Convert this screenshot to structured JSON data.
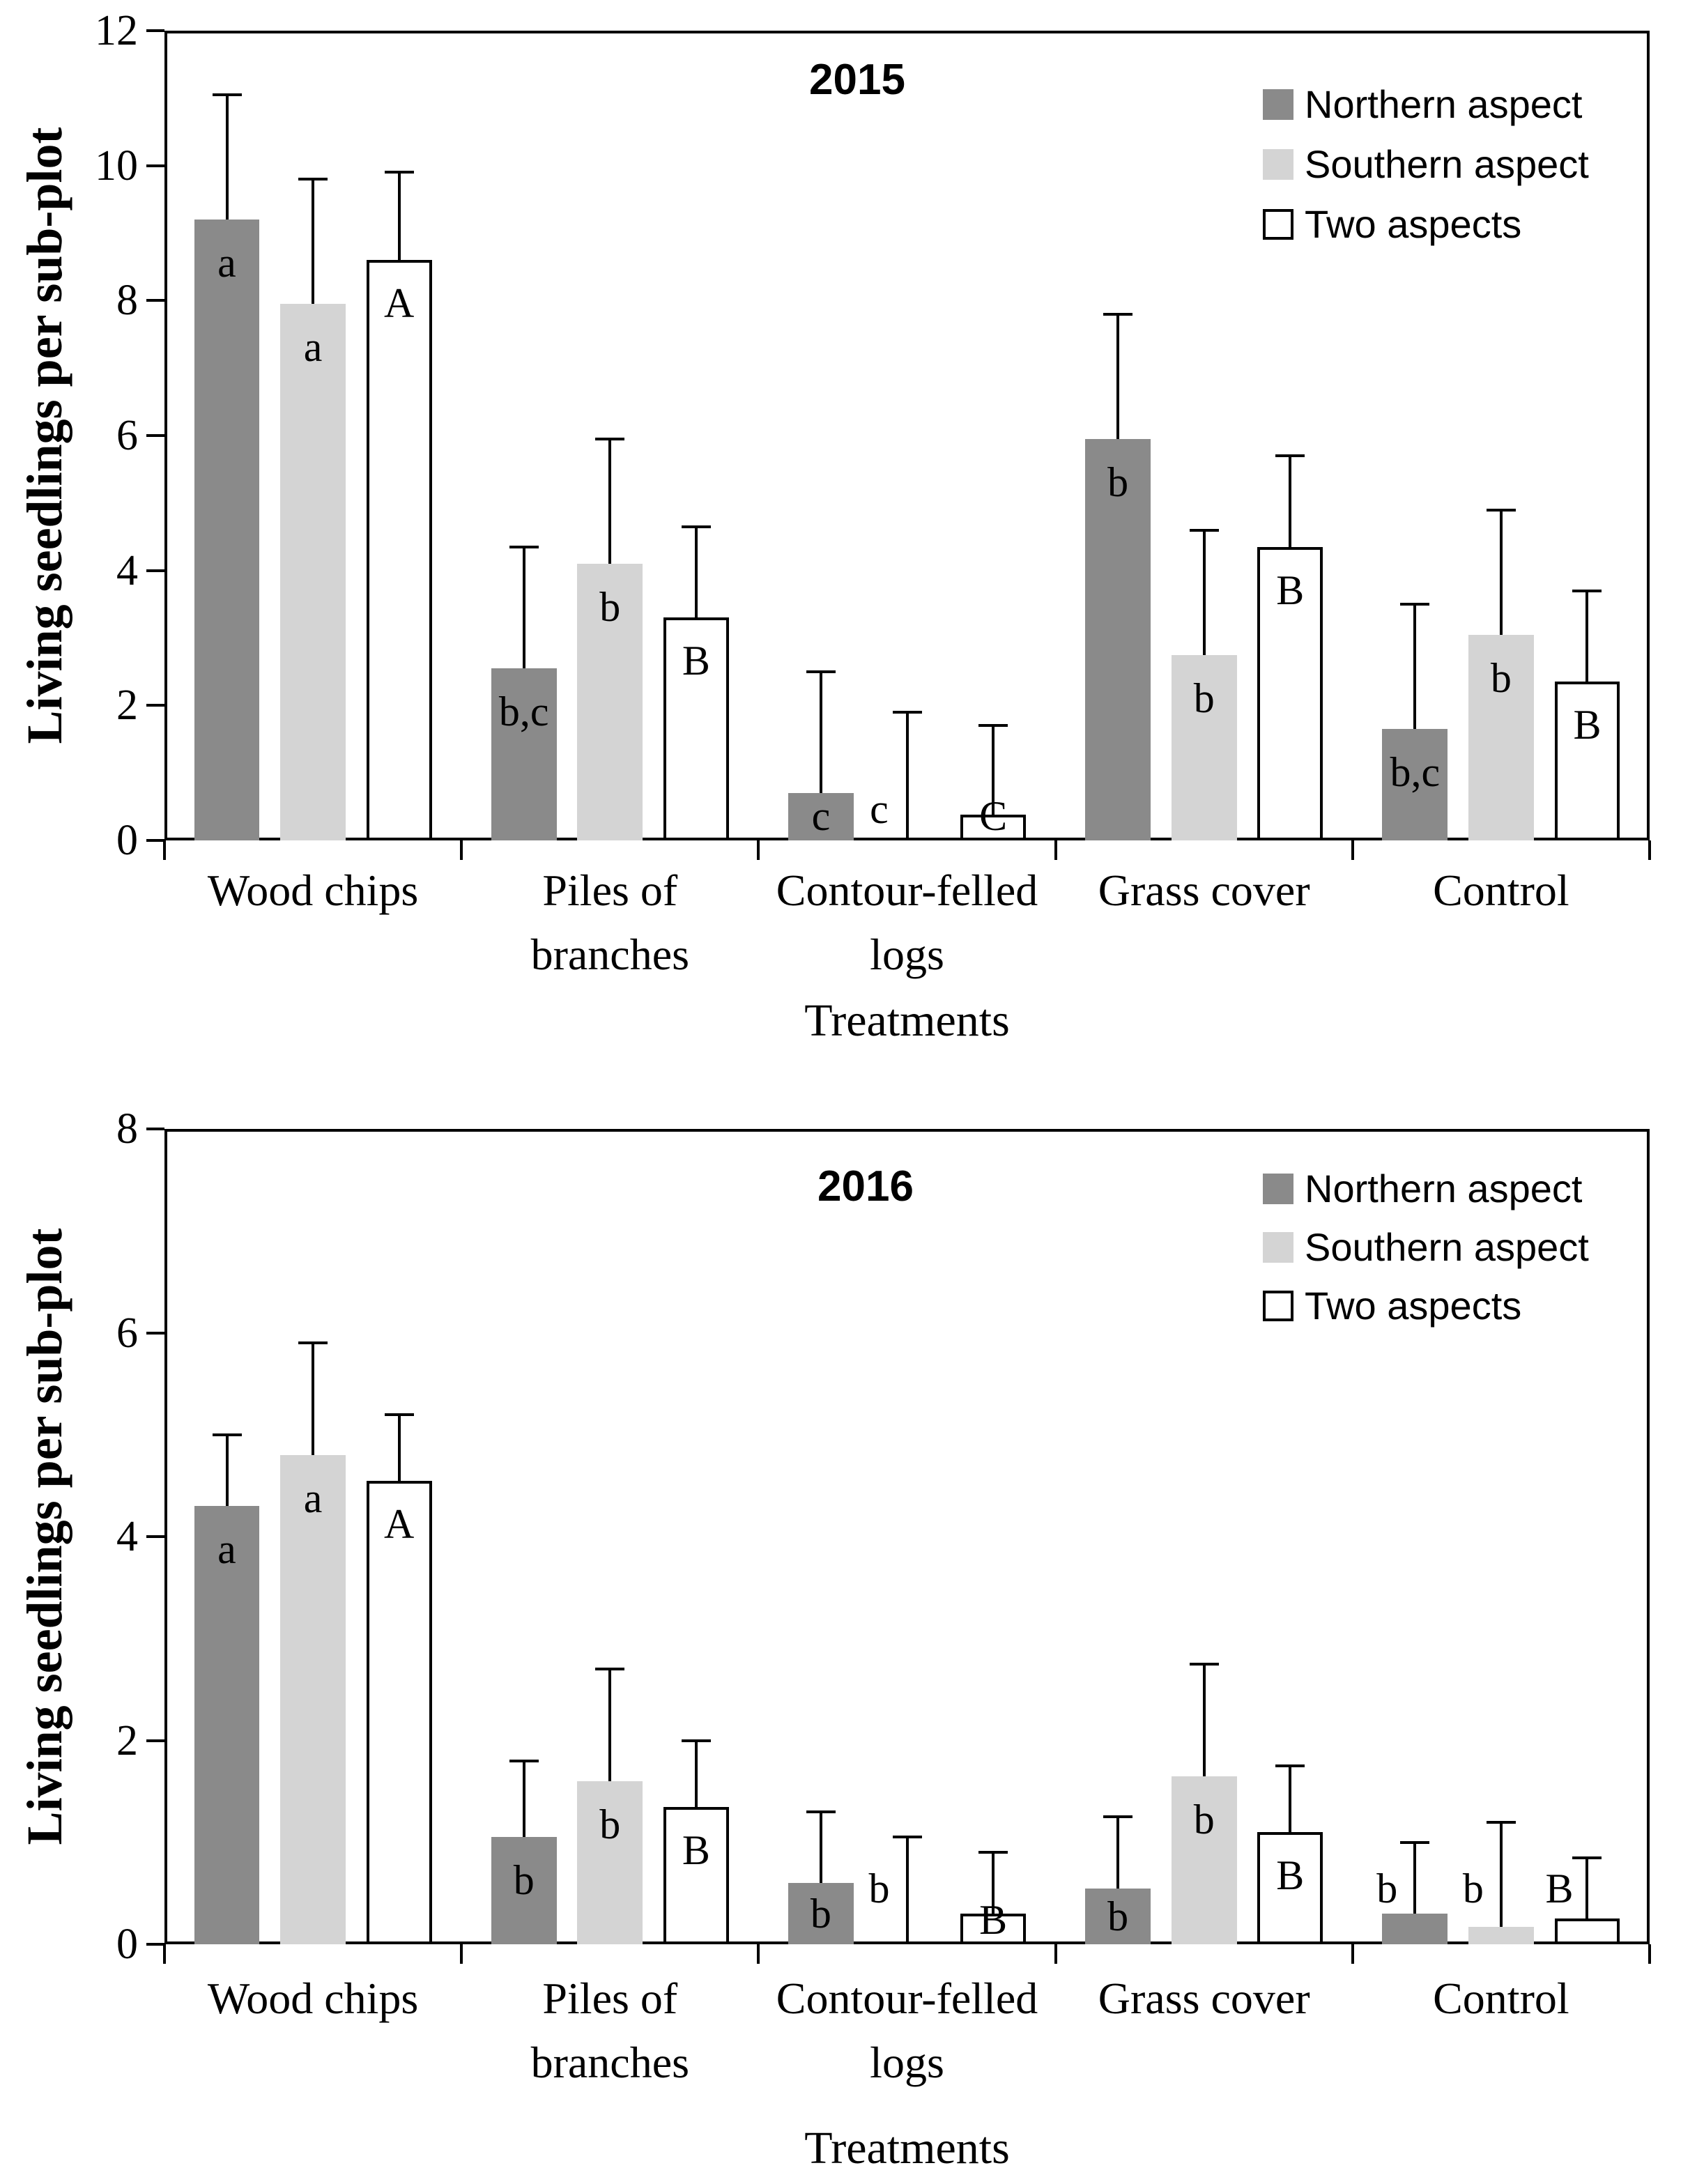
{
  "chart_data": [
    {
      "type": "bar",
      "title": "2015",
      "y_axis_label": "Living seedlings per sub-plot",
      "x_axis_label": "Treatments",
      "ylim": [
        0,
        12
      ],
      "yticks": [
        "0",
        "2",
        "4",
        "6",
        "8",
        "10",
        "12"
      ],
      "grid": false,
      "legend_position": "top-right",
      "categories": [
        [
          "Wood chips"
        ],
        [
          "Piles of",
          "branches"
        ],
        [
          "Contour-felled",
          "logs"
        ],
        [
          "Grass cover"
        ],
        [
          "Control"
        ]
      ],
      "legend": [
        {
          "label": "Northern aspect",
          "color": "#8a8a8a",
          "outlined": false
        },
        {
          "label": "Southern aspect",
          "color": "#d4d4d4",
          "outlined": false
        },
        {
          "label": "Two aspects",
          "color": "#ffffff",
          "outlined": true
        }
      ],
      "series": [
        {
          "name": "Northern aspect",
          "color": "#8a8a8a",
          "outlined": false,
          "values": [
            9.2,
            2.55,
            0.7,
            5.95,
            1.65
          ],
          "error_tops": [
            11.05,
            4.35,
            2.5,
            7.8,
            3.5
          ],
          "sig_labels": [
            "a",
            "b,c",
            "c",
            "b",
            "b,c"
          ],
          "sig_styles": [
            "in",
            "in",
            "low",
            "in",
            "in"
          ]
        },
        {
          "name": "Southern aspect",
          "color": "#d4d4d4",
          "outlined": false,
          "values": [
            7.95,
            4.1,
            0,
            2.75,
            3.05
          ],
          "error_tops": [
            9.8,
            5.95,
            1.9,
            4.6,
            4.9
          ],
          "sig_labels": [
            "a",
            "b",
            "c",
            "b",
            "b"
          ],
          "sig_styles": [
            "in",
            "in",
            "side",
            "in",
            "in"
          ]
        },
        {
          "name": "Two aspects",
          "color": "#ffffff",
          "outlined": true,
          "values": [
            8.6,
            3.3,
            0.38,
            4.35,
            2.35
          ],
          "error_tops": [
            9.9,
            4.65,
            1.7,
            5.7,
            3.7
          ],
          "sig_labels": [
            "A",
            "B",
            "C",
            "B",
            "B"
          ],
          "sig_styles": [
            "in",
            "in",
            "low",
            "in",
            "in"
          ]
        }
      ]
    },
    {
      "type": "bar",
      "title": "2016",
      "y_axis_label": "Living seedlings per sub-plot",
      "x_axis_label": "Treatments",
      "ylim": [
        0,
        8
      ],
      "yticks": [
        "0",
        "2",
        "4",
        "6",
        "8"
      ],
      "grid": false,
      "legend_position": "top-right",
      "categories": [
        [
          "Wood chips"
        ],
        [
          "Piles of",
          "branches"
        ],
        [
          "Contour-felled",
          "logs"
        ],
        [
          "Grass cover"
        ],
        [
          "Control"
        ]
      ],
      "legend": [
        {
          "label": "Northern aspect",
          "color": "#8a8a8a",
          "outlined": false
        },
        {
          "label": "Southern aspect",
          "color": "#d4d4d4",
          "outlined": false
        },
        {
          "label": "Two aspects",
          "color": "#ffffff",
          "outlined": true
        }
      ],
      "series": [
        {
          "name": "Northern aspect",
          "color": "#8a8a8a",
          "outlined": false,
          "values": [
            4.3,
            1.05,
            0.6,
            0.55,
            0.3
          ],
          "error_tops": [
            5.0,
            1.8,
            1.3,
            1.25,
            1.0
          ],
          "sig_labels": [
            "a",
            "b",
            "b",
            "b",
            "b"
          ],
          "sig_styles": [
            "in",
            "in",
            "low",
            "low",
            "side"
          ]
        },
        {
          "name": "Southern aspect",
          "color": "#d4d4d4",
          "outlined": false,
          "values": [
            4.8,
            1.6,
            0,
            1.65,
            0.17
          ],
          "error_tops": [
            5.9,
            2.7,
            1.05,
            2.75,
            1.2
          ],
          "sig_labels": [
            "a",
            "b",
            "b",
            "b",
            "b"
          ],
          "sig_styles": [
            "in",
            "in",
            "side",
            "in",
            "side"
          ]
        },
        {
          "name": "Two aspects",
          "color": "#ffffff",
          "outlined": true,
          "values": [
            4.55,
            1.35,
            0.3,
            1.1,
            0.25
          ],
          "error_tops": [
            5.2,
            2.0,
            0.9,
            1.75,
            0.85
          ],
          "sig_labels": [
            "A",
            "B",
            "B",
            "B",
            "B"
          ],
          "sig_styles": [
            "in",
            "in",
            "low",
            "in",
            "side"
          ]
        }
      ]
    }
  ]
}
